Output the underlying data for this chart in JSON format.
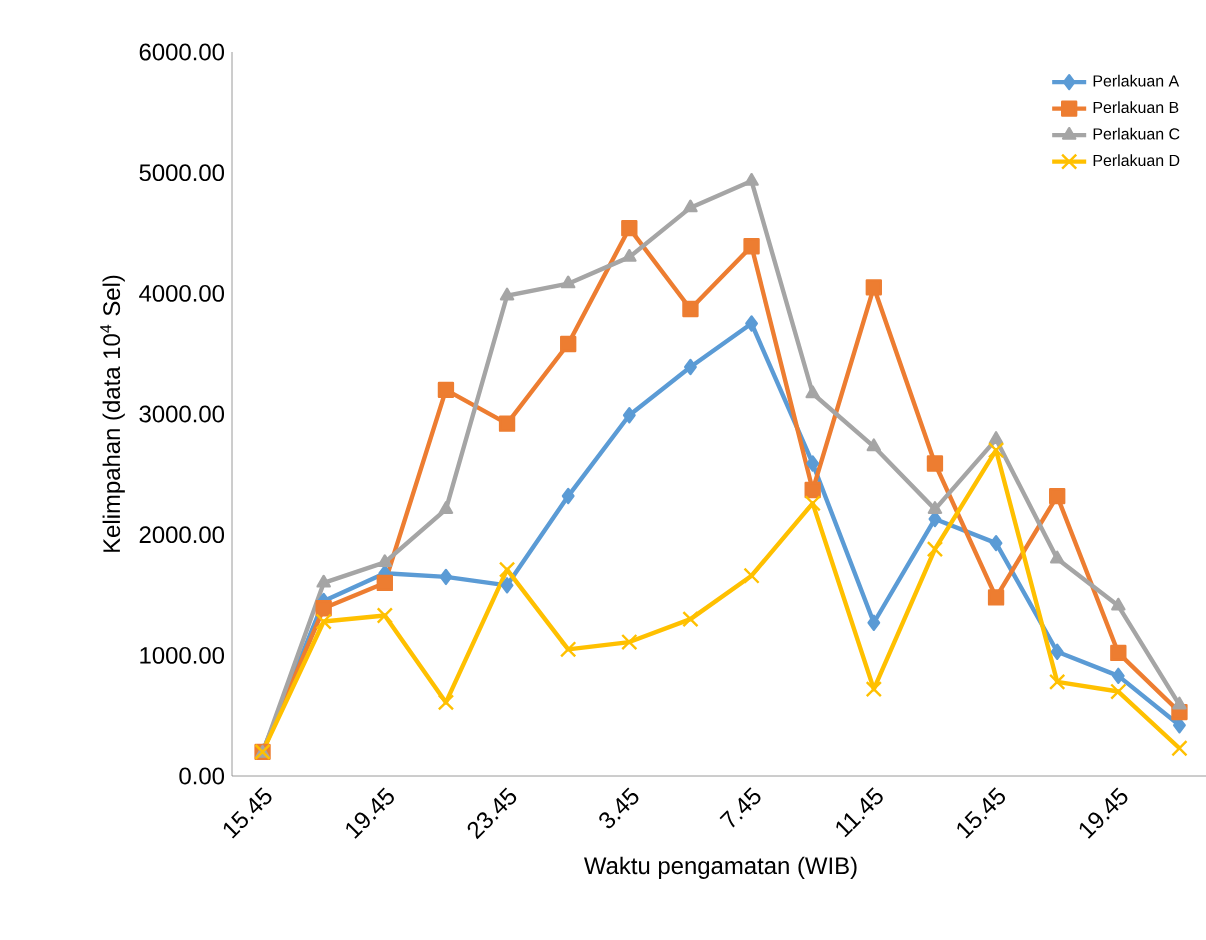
{
  "chart_data": {
    "type": "line",
    "xlabel": "Waktu pengamatan (WIB)",
    "ylabel": "Kelimpahan (data 10$^{4}$ Sel)",
    "categories": [
      "15.45",
      null,
      "19.45",
      null,
      "23.45",
      null,
      "3.45",
      null,
      "7.45",
      null,
      "11.45",
      null,
      "15.45",
      null,
      "19.45",
      null
    ],
    "ylim": [
      0,
      6000
    ],
    "yticks": [
      {
        "value": 0,
        "label": "0.00"
      },
      {
        "value": 1000,
        "label": "1000.00"
      },
      {
        "value": 2000,
        "label": "2000.00"
      },
      {
        "value": 3000,
        "label": "3000.00"
      },
      {
        "value": 4000,
        "label": "4000.00"
      },
      {
        "value": 5000,
        "label": "5000.00"
      },
      {
        "value": 6000,
        "label": "6000.00"
      }
    ],
    "legend": "top right",
    "grid": false,
    "line_style": "solid",
    "series": [
      {
        "name": "Perlakuan A",
        "color": "#5b9bd5",
        "marker": "diamond",
        "values": [
          200,
          1450,
          1680,
          1650,
          1580,
          2320,
          2990,
          3390,
          3750,
          2590,
          1270,
          2130,
          1930,
          1030,
          830,
          420
        ]
      },
      {
        "name": "Perlakuan B",
        "color": "#ed7d31",
        "marker": "square",
        "values": [
          200,
          1390,
          1600,
          3200,
          2920,
          3580,
          4540,
          3870,
          4390,
          2370,
          4050,
          2590,
          1480,
          2320,
          1020,
          530
        ]
      },
      {
        "name": "Perlakuan C",
        "color": "#a5a5a5",
        "marker": "triangle",
        "values": [
          190,
          1600,
          1770,
          2210,
          3980,
          4080,
          4300,
          4710,
          4930,
          3170,
          2730,
          2210,
          2790,
          1800,
          1410,
          590
        ]
      },
      {
        "name": "Perlakuan D",
        "color": "#ffc000",
        "marker": "cross",
        "values": [
          200,
          1280,
          1330,
          610,
          1710,
          1050,
          1110,
          1300,
          1660,
          2260,
          720,
          1880,
          2700,
          780,
          700,
          230
        ]
      }
    ]
  }
}
